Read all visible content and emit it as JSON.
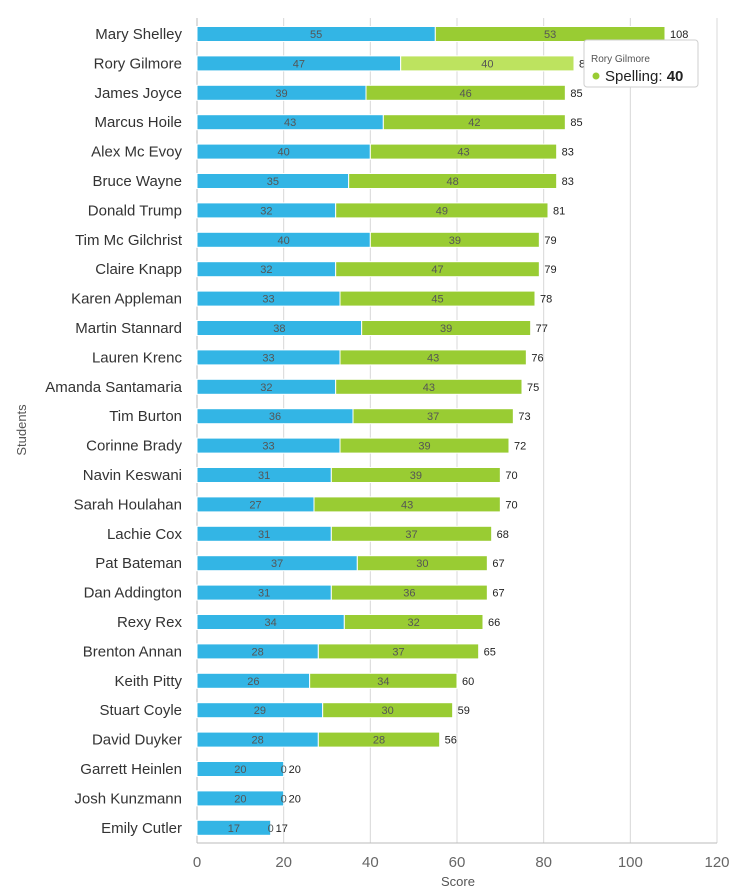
{
  "colors": {
    "series1": "#33b5e5",
    "series2": "#99cc33",
    "series2_hover": "#bde35f",
    "grid": "#d8d8d8",
    "axis": "#bbbbbb"
  },
  "chart_data": {
    "type": "bar",
    "orientation": "horizontal",
    "stacked": true,
    "xlabel": "Score",
    "ylabel": "Students",
    "xlim": [
      0,
      120
    ],
    "xticks": [
      0,
      20,
      40,
      60,
      80,
      100,
      120
    ],
    "grid": true,
    "categories": [
      "Mary Shelley",
      "Rory Gilmore",
      "James Joyce",
      "Marcus Hoile",
      "Alex Mc Evoy",
      "Bruce Wayne",
      "Donald Trump",
      "Tim Mc Gilchrist",
      "Claire Knapp",
      "Karen Appleman",
      "Martin Stannard",
      "Lauren Krenc",
      "Amanda Santamaria",
      "Tim Burton",
      "Corinne Brady",
      "Navin Keswani",
      "Sarah Houlahan",
      "Lachie Cox",
      "Pat Bateman",
      "Dan Addington",
      "Rexy Rex",
      "Brenton Annan",
      "Keith Pitty",
      "Stuart Coyle",
      "David Duyker",
      "Garrett Heinlen",
      "Josh Kunzmann",
      "Emily Cutler"
    ],
    "series": [
      {
        "values": [
          55,
          47,
          39,
          43,
          40,
          35,
          32,
          40,
          32,
          33,
          38,
          33,
          32,
          36,
          33,
          31,
          27,
          31,
          37,
          31,
          34,
          28,
          26,
          29,
          28,
          20,
          20,
          17
        ]
      },
      {
        "name": "Spelling",
        "values": [
          53,
          40,
          46,
          42,
          43,
          48,
          49,
          39,
          47,
          45,
          39,
          43,
          43,
          37,
          39,
          39,
          43,
          37,
          30,
          36,
          32,
          37,
          34,
          30,
          28,
          0,
          0,
          0
        ]
      }
    ],
    "totals": [
      108,
      87,
      85,
      85,
      83,
      83,
      81,
      79,
      79,
      78,
      77,
      76,
      75,
      73,
      72,
      70,
      70,
      68,
      67,
      67,
      66,
      65,
      60,
      59,
      56,
      20,
      20,
      17
    ],
    "highlighted_index": 1
  },
  "tooltip": {
    "title": "Rory Gilmore",
    "series_name": "Spelling",
    "value": "40"
  }
}
